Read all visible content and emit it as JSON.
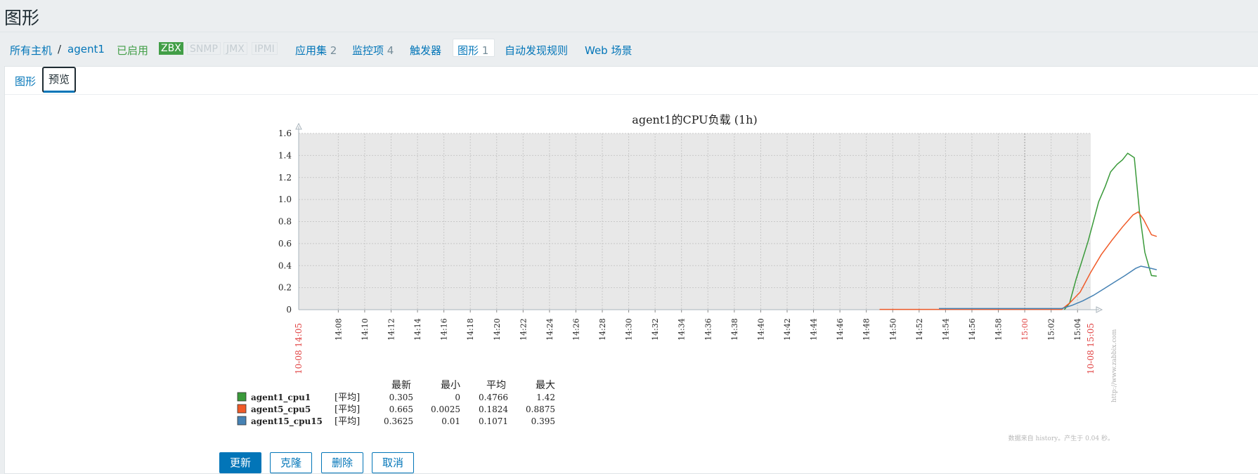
{
  "page_title": "图形",
  "nav": {
    "all_hosts": "所有主机",
    "separator": "/",
    "host": "agent1",
    "status": "已启用",
    "protocols": [
      {
        "label": "ZBX",
        "active": true
      },
      {
        "label": "SNMP",
        "active": false
      },
      {
        "label": "JMX",
        "active": false
      },
      {
        "label": "IPMI",
        "active": false
      }
    ],
    "applications": {
      "label": "应用集",
      "count": "2"
    },
    "items": {
      "label": "监控项",
      "count": "4"
    },
    "triggers": {
      "label": "触发器"
    },
    "graphs": {
      "label": "图形",
      "count": "1"
    },
    "discovery": {
      "label": "自动发现规则"
    },
    "web": {
      "label": "Web 场景"
    }
  },
  "tabs": {
    "graph": "图形",
    "preview": "预览"
  },
  "chart_data": {
    "type": "line",
    "title": "agent1的CPU负载 (1h)",
    "ylim": [
      0,
      1.6
    ],
    "yticks": [
      "0",
      "0.2",
      "0.4",
      "0.6",
      "0.8",
      "1.0",
      "1.2",
      "1.4",
      "1.6"
    ],
    "xticks": [
      "14:08",
      "14:10",
      "14:12",
      "14:14",
      "14:16",
      "14:18",
      "14:20",
      "14:22",
      "14:24",
      "14:26",
      "14:28",
      "14:30",
      "14:32",
      "14:34",
      "14:36",
      "14:38",
      "14:40",
      "14:42",
      "14:44",
      "14:46",
      "14:48",
      "14:50",
      "14:52",
      "14:54",
      "14:56",
      "14:58",
      "15:00",
      "15:02",
      "15:04"
    ],
    "x_start_label": "10-08 14:05",
    "x_end_label": "10-08 15:05",
    "x_highlight_label": "15:00",
    "watermark": "http://www.zabbix.com",
    "grid": true,
    "series": [
      {
        "name": "agent1_cpu1",
        "color": "#3a9a3a",
        "x": [
          58.0,
          58.4,
          58.9,
          59.3,
          59.8,
          60.2,
          60.6,
          61.1,
          61.5,
          62.0,
          62.4,
          62.8,
          63.3,
          63.7,
          64.1,
          64.6,
          65.0
        ],
        "y": [
          0.0,
          0.06,
          0.28,
          0.43,
          0.62,
          0.8,
          0.98,
          1.12,
          1.25,
          1.32,
          1.36,
          1.42,
          1.38,
          0.88,
          0.52,
          0.31,
          0.305
        ]
      },
      {
        "name": "agent5_cpu5",
        "color": "#f05a28",
        "x": [
          44.0,
          48.0,
          52.0,
          57.8,
          58.4,
          59.2,
          60.0,
          60.8,
          61.6,
          62.4,
          63.2,
          63.6,
          64.0,
          64.6,
          65.0
        ],
        "y": [
          0.0025,
          0.0025,
          0.0025,
          0.0025,
          0.06,
          0.16,
          0.34,
          0.5,
          0.63,
          0.75,
          0.86,
          0.8875,
          0.82,
          0.68,
          0.665
        ]
      },
      {
        "name": "agent15_cpu15",
        "color": "#4682b4",
        "x": [
          48.5,
          52.0,
          57.8,
          58.6,
          59.4,
          60.2,
          61.0,
          61.8,
          62.6,
          63.4,
          63.8,
          64.4,
          65.0
        ],
        "y": [
          0.01,
          0.01,
          0.01,
          0.04,
          0.08,
          0.13,
          0.19,
          0.25,
          0.31,
          0.375,
          0.395,
          0.38,
          0.3625
        ]
      }
    ],
    "legend": {
      "headers": [
        "最新",
        "最小",
        "平均",
        "最大"
      ],
      "rows": [
        {
          "name": "agent1_cpu1",
          "func": "[平均]",
          "last": "0.305",
          "min": "0",
          "avg": "0.4766",
          "max": "1.42",
          "color": "#3a9a3a"
        },
        {
          "name": "agent5_cpu5",
          "func": "[平均]",
          "last": "0.665",
          "min": "0.0025",
          "avg": "0.1824",
          "max": "0.8875",
          "color": "#f05a28"
        },
        {
          "name": "agent15_cpu15",
          "func": "[平均]",
          "last": "0.3625",
          "min": "0.01",
          "avg": "0.1071",
          "max": "0.395",
          "color": "#4682b4"
        }
      ]
    },
    "footer_note": "数据来自 history。产生于 0.04 秒。"
  },
  "buttons": {
    "update": "更新",
    "clone": "克隆",
    "delete": "删除",
    "cancel": "取消"
  }
}
